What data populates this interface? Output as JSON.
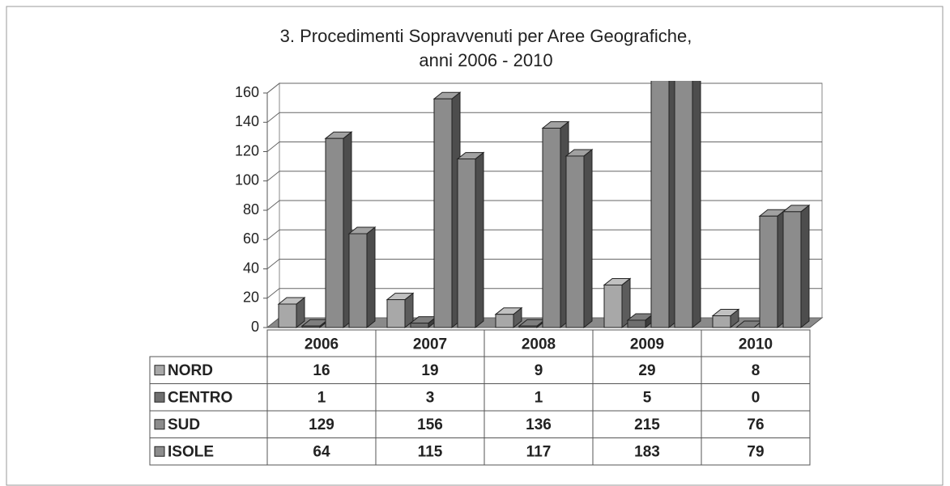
{
  "chart_data": {
    "type": "bar3d",
    "title": "3. Procedimenti Sopravvenuti per Aree Geografiche,",
    "subtitle": "anni 2006 - 2010",
    "categories": [
      "2006",
      "2007",
      "2008",
      "2009",
      "2010"
    ],
    "series": [
      {
        "name": "NORD",
        "color": "#a8a8a8",
        "values": [
          16,
          19,
          9,
          29,
          8
        ]
      },
      {
        "name": "CENTRO",
        "color": "#6e6e6e",
        "values": [
          1,
          3,
          1,
          5,
          0
        ]
      },
      {
        "name": "SUD",
        "color": "#8c8c8c",
        "values": [
          129,
          156,
          136,
          215,
          76
        ]
      },
      {
        "name": "ISOLE",
        "color": "#8c8c8c",
        "values": [
          64,
          115,
          117,
          183,
          79
        ]
      }
    ],
    "ylim": [
      0,
      160
    ],
    "yticks": [
      0,
      20,
      40,
      60,
      80,
      100,
      120,
      140,
      160
    ],
    "grid": true,
    "legend": "table"
  }
}
